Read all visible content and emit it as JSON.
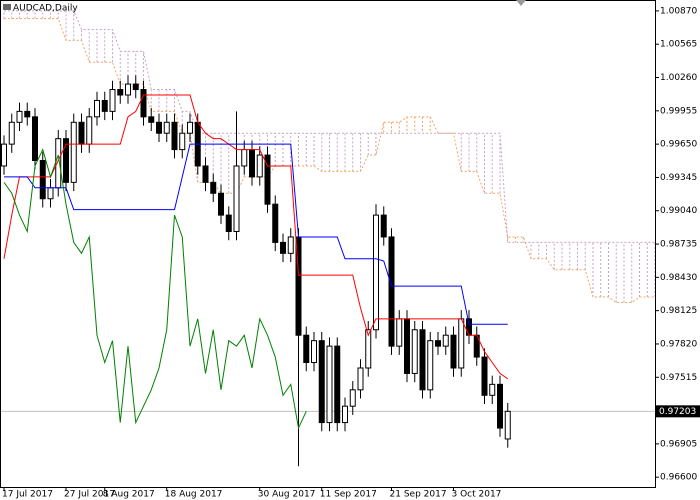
{
  "chart_data": {
    "type": "candlestick",
    "title": "AUDCAD,Daily",
    "categories": [
      "17 Jul 2017",
      null,
      null,
      null,
      null,
      null,
      null,
      null,
      "27 Jul 2017",
      null,
      null,
      null,
      null,
      "8 Aug 2017",
      null,
      null,
      null,
      null,
      null,
      null,
      null,
      "18 Aug 2017",
      null,
      null,
      null,
      null,
      null,
      null,
      null,
      null,
      null,
      null,
      null,
      "30 Aug 2017",
      null,
      null,
      null,
      null,
      null,
      null,
      null,
      "11 Sep 2017",
      null,
      null,
      null,
      null,
      null,
      null,
      null,
      null,
      "21 Sep 2017",
      null,
      null,
      null,
      null,
      null,
      null,
      null,
      "3 Oct 2017",
      null,
      null,
      null,
      null,
      null,
      null,
      null,
      null,
      null,
      null,
      null,
      null,
      null,
      null,
      null,
      null,
      null,
      null,
      null,
      null,
      null,
      null,
      null,
      null,
      null,
      null
    ],
    "open": [
      0.9945,
      0.9965,
      0.9985,
      0.9995,
      0.999,
      0.995,
      0.9915,
      0.9925,
      0.997,
      0.993,
      0.9985,
      0.9965,
      0.999,
      1.0005,
      0.9995,
      1.0015,
      1.001,
      1.002,
      1.0015,
      0.999,
      0.9985,
      0.9975,
      0.9985,
      0.996,
      0.9975,
      0.9985,
      0.9945,
      0.993,
      0.992,
      0.99,
      0.9885,
      0.9945,
      0.996,
      0.9935,
      0.9955,
      0.991,
      0.9875,
      0.9865,
      0.988,
      0.979,
      0.9765,
      0.9785,
      0.971,
      0.978,
      0.971,
      0.9725,
      0.974,
      0.976,
      0.9795,
      0.99,
      0.988,
      0.978,
      0.9805,
      0.9755,
      0.9795,
      0.974,
      0.9785,
      0.978,
      0.979,
      0.976,
      0.9805,
      0.979,
      0.977,
      0.9735,
      0.9745,
      0.9695,
      null,
      null,
      null,
      null,
      null,
      null,
      null,
      null,
      null,
      null,
      null,
      null,
      null,
      null,
      null,
      null,
      null,
      null,
      null
    ],
    "high": [
      0.9973,
      0.9993,
      1.0003,
      1.0003,
      0.9998,
      0.9958,
      0.9933,
      0.9978,
      0.9978,
      0.9993,
      0.9993,
      0.9998,
      1.0013,
      1.0013,
      1.0023,
      1.0023,
      1.0028,
      1.0028,
      1.0023,
      0.9998,
      0.9993,
      0.9993,
      0.9993,
      0.9983,
      0.9993,
      0.9993,
      0.9953,
      0.9938,
      0.9928,
      0.9908,
      0.9995,
      0.9968,
      0.9968,
      0.9963,
      0.9963,
      0.9918,
      0.9883,
      0.9888,
      0.9888,
      0.9798,
      0.9793,
      0.9793,
      0.9788,
      0.9788,
      0.9733,
      0.9748,
      0.9768,
      0.9803,
      0.991,
      0.9908,
      0.9888,
      0.9813,
      0.9813,
      0.9803,
      0.9803,
      0.9793,
      0.9793,
      0.9798,
      0.9798,
      0.9813,
      0.9813,
      0.9798,
      0.9778,
      0.9753,
      0.9753,
      0.9728,
      null,
      null,
      null,
      null,
      null,
      null,
      null,
      null,
      null,
      null,
      null,
      null,
      null,
      null,
      null,
      null,
      null,
      null,
      null
    ],
    "low": [
      0.9937,
      0.9957,
      0.9977,
      0.9982,
      0.9942,
      0.9907,
      0.9907,
      0.9917,
      0.9922,
      0.9922,
      0.9957,
      0.9957,
      0.9982,
      0.9987,
      0.9987,
      1.0002,
      1.0002,
      1.0007,
      0.9982,
      0.9977,
      0.9967,
      0.9967,
      0.9952,
      0.9952,
      0.9967,
      0.9937,
      0.9922,
      0.9912,
      0.9892,
      0.9877,
      0.9877,
      0.9937,
      0.9927,
      0.9927,
      0.9902,
      0.9867,
      0.9857,
      0.9857,
      0.967,
      0.9757,
      0.9757,
      0.9702,
      0.9702,
      0.9702,
      0.9702,
      0.9717,
      0.9732,
      0.9752,
      0.9787,
      0.9872,
      0.9772,
      0.9772,
      0.9747,
      0.9747,
      0.9732,
      0.9732,
      0.9772,
      0.9772,
      0.9752,
      0.9752,
      0.9782,
      0.9762,
      0.9727,
      0.9727,
      0.9697,
      0.9687,
      null,
      null,
      null,
      null,
      null,
      null,
      null,
      null,
      null,
      null,
      null,
      null,
      null,
      null,
      null,
      null,
      null,
      null,
      null
    ],
    "close": [
      0.9965,
      0.9985,
      0.9995,
      0.999,
      0.995,
      0.9915,
      0.9925,
      0.997,
      0.993,
      0.9985,
      0.9965,
      0.999,
      1.0005,
      0.9995,
      1.0015,
      1.001,
      1.002,
      1.0015,
      0.999,
      0.9985,
      0.9975,
      0.9985,
      0.996,
      0.9975,
      0.9985,
      0.9945,
      0.993,
      0.992,
      0.99,
      0.9885,
      0.9945,
      0.996,
      0.9935,
      0.9955,
      0.991,
      0.9875,
      0.9865,
      0.988,
      0.979,
      0.9765,
      0.9785,
      0.971,
      0.978,
      0.971,
      0.9725,
      0.974,
      0.976,
      0.9795,
      0.99,
      0.988,
      0.978,
      0.9805,
      0.9755,
      0.9795,
      0.974,
      0.9785,
      0.978,
      0.979,
      0.976,
      0.9805,
      0.979,
      0.977,
      0.9735,
      0.9745,
      0.9705,
      0.97203,
      null,
      null,
      null,
      null,
      null,
      null,
      null,
      null,
      null,
      null,
      null,
      null,
      null,
      null,
      null,
      null,
      null,
      null,
      null
    ],
    "up_color": "#ffffff",
    "down_color": "#000000",
    "lines": [
      {
        "color": "#ff0000",
        "values": [
          0.986,
          0.99,
          0.9935,
          0.9935,
          0.9935,
          0.9935,
          0.9935,
          0.995,
          0.9965,
          0.9965,
          0.9965,
          0.9965,
          0.9965,
          0.9965,
          0.9965,
          0.9965,
          0.999,
          0.9995,
          1.001,
          1.001,
          1.001,
          1.001,
          1.001,
          1.001,
          1.001,
          0.9985,
          0.9975,
          0.997,
          0.997,
          0.9965,
          0.996,
          0.996,
          0.996,
          0.996,
          0.9945,
          0.9945,
          0.9945,
          0.9945,
          0.9845,
          0.9845,
          0.9845,
          0.9845,
          0.9845,
          0.9845,
          0.9845,
          0.9845,
          0.9815,
          0.979,
          0.9805,
          0.9805,
          0.9805,
          0.9805,
          0.9805,
          0.9805,
          0.9805,
          0.9805,
          0.9805,
          0.9805,
          0.9805,
          0.9805,
          0.979,
          0.979,
          0.9775,
          0.9765,
          0.9755,
          0.975,
          null,
          null,
          null,
          null,
          null,
          null,
          null,
          null,
          null,
          null,
          null,
          null,
          null,
          null,
          null,
          null,
          null,
          null,
          null
        ]
      },
      {
        "color": "#0000ff",
        "values": [
          0.9935,
          0.9935,
          0.9935,
          0.9935,
          0.9925,
          0.9925,
          0.9925,
          0.9925,
          0.9925,
          0.9905,
          0.9905,
          0.9905,
          0.9905,
          0.9905,
          0.9905,
          0.9905,
          0.9905,
          0.9905,
          0.9905,
          0.9905,
          0.9905,
          0.9905,
          0.9905,
          0.9935,
          0.9965,
          0.9965,
          0.9965,
          0.9965,
          0.9965,
          0.9965,
          0.9965,
          0.9965,
          0.9965,
          0.9965,
          0.9965,
          0.9965,
          0.9965,
          0.9965,
          0.988,
          0.988,
          0.988,
          0.988,
          0.988,
          0.988,
          0.986,
          0.986,
          0.986,
          0.986,
          0.986,
          0.9858,
          0.9835,
          0.9835,
          0.9835,
          0.9835,
          0.9835,
          0.9835,
          0.9835,
          0.9835,
          0.9835,
          0.9835,
          0.98,
          0.98,
          0.98,
          0.98,
          0.98,
          0.98,
          null,
          null,
          null,
          null,
          null,
          null,
          null,
          null,
          null,
          null,
          null,
          null,
          null,
          null,
          null,
          null,
          null,
          null,
          null
        ]
      },
      {
        "color": "#008000",
        "values": [
          0.993,
          0.992,
          0.99,
          0.9885,
          0.9945,
          0.996,
          0.9935,
          0.9955,
          0.991,
          0.9875,
          0.9865,
          0.988,
          0.979,
          0.9765,
          0.9785,
          0.971,
          0.978,
          0.971,
          0.9725,
          0.974,
          0.976,
          0.9795,
          0.99,
          0.988,
          0.978,
          0.9805,
          0.9755,
          0.9795,
          0.974,
          0.9785,
          0.978,
          0.979,
          0.976,
          0.9805,
          0.979,
          0.977,
          0.9735,
          0.9745,
          0.9705,
          0.97203,
          null,
          null,
          null,
          null,
          null,
          null,
          null,
          null,
          null,
          null,
          null,
          null,
          null,
          null,
          null,
          null,
          null,
          null,
          null,
          null,
          null,
          null,
          null,
          null,
          null,
          null,
          null,
          null,
          null,
          null,
          null,
          null,
          null,
          null,
          null,
          null,
          null,
          null,
          null,
          null,
          null,
          null,
          null,
          null,
          null
        ]
      }
    ],
    "cloud": [
      {
        "color": "#f4a460",
        "values": [
          1.008,
          1.008,
          1.008,
          1.008,
          1.008,
          1.008,
          1.008,
          1.008,
          1.006,
          1.006,
          1.006,
          1.004,
          1.004,
          1.004,
          1.004,
          1.002,
          1.002,
          1.002,
          1.002,
          0.9995,
          0.9995,
          0.9995,
          0.9995,
          0.9975,
          0.9975,
          0.993,
          0.993,
          0.993,
          0.992,
          0.992,
          0.992,
          0.9935,
          0.9935,
          0.9935,
          0.9935,
          0.9945,
          0.9945,
          0.9945,
          0.9945,
          0.9945,
          0.9945,
          0.994,
          0.994,
          0.994,
          0.994,
          0.994,
          0.994,
          0.9955,
          0.9955,
          0.9985,
          0.9985,
          0.9985,
          0.999,
          0.999,
          0.999,
          0.999,
          0.9975,
          0.9975,
          0.9975,
          0.994,
          0.994,
          0.994,
          0.992,
          0.992,
          0.992,
          0.988,
          0.988,
          0.988,
          0.986,
          0.986,
          0.986,
          0.985,
          0.985,
          0.985,
          0.985,
          0.985,
          0.9825,
          0.9825,
          0.9825,
          0.982,
          0.982,
          0.982,
          0.9825,
          0.9825,
          0.9825
        ]
      },
      {
        "color": "#c8a2c8",
        "values": [
          1.0087,
          1.0087,
          1.0087,
          1.0087,
          1.0087,
          1.0087,
          1.0087,
          1.0087,
          1.0087,
          1.0087,
          1.007,
          1.007,
          1.007,
          1.007,
          1.007,
          1.005,
          1.005,
          1.005,
          1.005,
          1.0015,
          1.0015,
          1.0015,
          1.0015,
          0.9995,
          0.9995,
          0.9975,
          0.9975,
          0.9975,
          0.9975,
          0.9975,
          0.9975,
          0.9975,
          0.9975,
          0.9975,
          0.9975,
          0.9975,
          0.9975,
          0.9975,
          0.9975,
          0.9975,
          0.9975,
          0.9975,
          0.9975,
          0.9975,
          0.9975,
          0.9975,
          0.9975,
          0.9975,
          0.9975,
          0.9975,
          0.9975,
          0.9975,
          0.9975,
          0.9975,
          0.9975,
          0.9975,
          0.9975,
          0.9975,
          0.9975,
          0.9975,
          0.9975,
          0.9975,
          0.9975,
          0.9975,
          0.9975,
          0.9875,
          0.9875,
          0.9875,
          0.9875,
          0.9875,
          0.9875,
          0.9875,
          0.9875,
          0.9875,
          0.9875,
          0.9875,
          0.9875,
          0.9875,
          0.9875,
          0.9875,
          0.9875,
          0.9875,
          0.9875,
          0.9875,
          0.9875
        ]
      }
    ],
    "current_price": 0.97203,
    "ylim": [
      0.9651,
      1.0097
    ],
    "yticks": [
      {
        "value": 1.0087,
        "label": "1.00870"
      },
      1.00565,
      {
        "value": 1.0026,
        "label": "1.00260"
      },
      0.99955,
      {
        "value": 0.9965,
        "label": "0.99650"
      },
      0.99345,
      {
        "value": 0.9904,
        "label": "0.99040"
      },
      0.98735,
      {
        "value": 0.9843,
        "label": "0.98430"
      },
      0.98125,
      {
        "value": 0.9782,
        "label": "0.97820"
      },
      0.97515,
      0.96905,
      {
        "value": 0.966,
        "label": "0.96600"
      }
    ]
  }
}
